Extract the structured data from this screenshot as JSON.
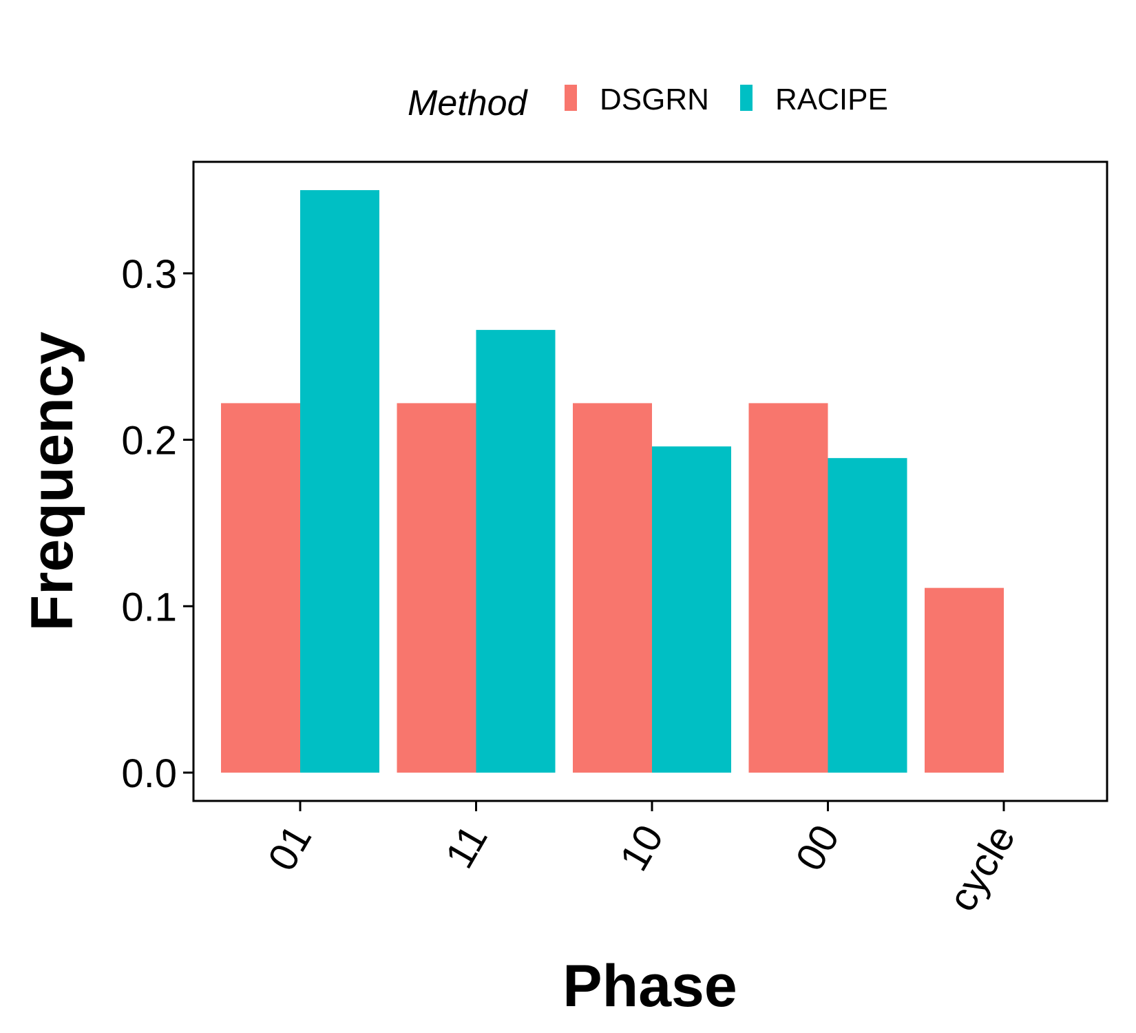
{
  "chart_data": {
    "type": "bar",
    "xlabel": "Phase",
    "ylabel": "Frequency",
    "categories": [
      "01",
      "11",
      "10",
      "00",
      "cycle"
    ],
    "series": [
      {
        "name": "DSGRN",
        "color": "#F8766D",
        "values": [
          0.222,
          0.222,
          0.222,
          0.222,
          0.111
        ]
      },
      {
        "name": "RACIPE",
        "color": "#00BFC4",
        "values": [
          0.35,
          0.266,
          0.196,
          0.189,
          null
        ]
      }
    ],
    "ylim": [
      -0.017,
      0.367
    ],
    "yticks": [
      "0.0",
      "0.1",
      "0.2",
      "0.3"
    ],
    "grid": false,
    "legend": {
      "title": "Method",
      "position": "top"
    }
  }
}
